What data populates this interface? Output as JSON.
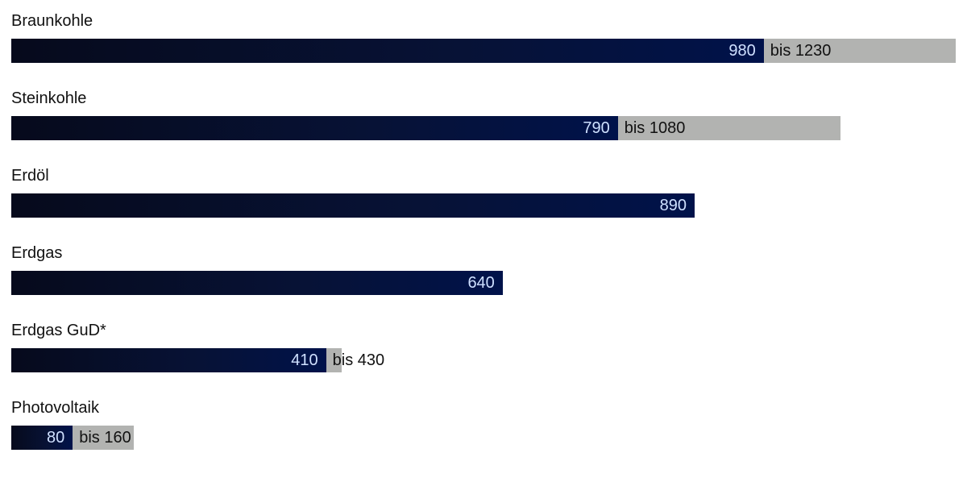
{
  "chart_data": {
    "type": "bar",
    "orientation": "horizontal",
    "categories": [
      "Braunkohle",
      "Steinkohle",
      "Erdöl",
      "Erdgas",
      "Erdgas GuD*",
      "Photovoltaik"
    ],
    "values": [
      980,
      790,
      890,
      640,
      410,
      80
    ],
    "range_max": [
      1230,
      1080,
      null,
      null,
      430,
      160
    ],
    "value_labels": [
      "980",
      "790",
      "890",
      "640",
      "410",
      "80"
    ],
    "range_labels": [
      "bis 1230",
      "bis 1080",
      "",
      "",
      "bis 430",
      "bis 160"
    ],
    "xlim": [
      0,
      1230
    ],
    "grid": false,
    "colors": {
      "bar": "#00124a",
      "bar_dark": "#060a1c",
      "range": "#b2b3b1",
      "value_text": "#cfe0ff"
    }
  }
}
